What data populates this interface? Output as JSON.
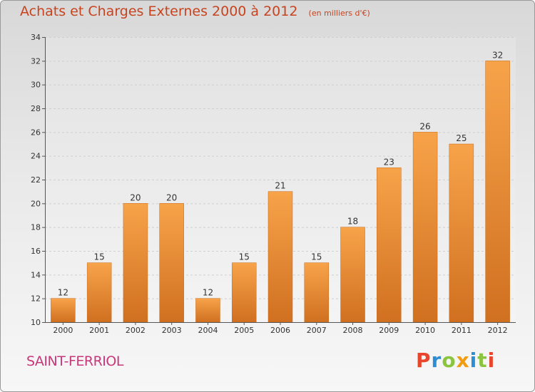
{
  "chart_data": {
    "type": "bar",
    "title": "Achats et Charges Externes 2000 à 2012",
    "subtitle": "(en milliers d'€)",
    "categories": [
      "2000",
      "2001",
      "2002",
      "2003",
      "2004",
      "2005",
      "2006",
      "2007",
      "2008",
      "2009",
      "2010",
      "2011",
      "2012"
    ],
    "values": [
      12,
      15,
      20,
      20,
      12,
      15,
      21,
      15,
      18,
      23,
      26,
      25,
      32
    ],
    "ylim": [
      10,
      34
    ],
    "yticks": [
      10,
      12,
      14,
      16,
      18,
      20,
      22,
      24,
      26,
      28,
      30,
      32,
      34
    ],
    "grid": true,
    "xlabel": "",
    "ylabel": ""
  },
  "footer": {
    "commune": "SAINT-FERRIOL",
    "brand": "Proxiti"
  },
  "colors": {
    "bar_light": "#f7a34a",
    "bar_dark": "#d07020",
    "title": "#c7441f",
    "commune": "#c7387a",
    "brand_letters": [
      "#e8452c",
      "#2b8fd6",
      "#8bc53f",
      "#f39c12",
      "#2b8fd6",
      "#8bc53f",
      "#e8452c"
    ]
  }
}
